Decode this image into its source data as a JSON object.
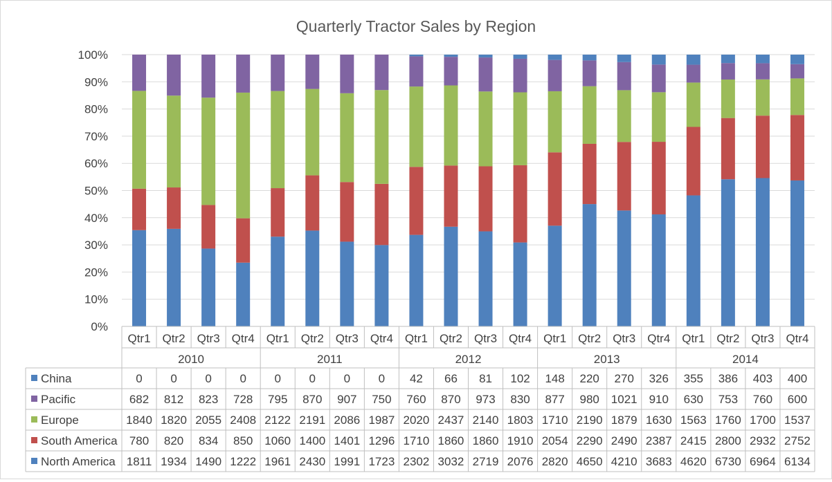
{
  "chart_data": {
    "type": "bar",
    "stacked": "percent",
    "title": "Quarterly Tractor Sales by Region",
    "years": [
      "2010",
      "2011",
      "2012",
      "2013",
      "2014"
    ],
    "quarters": [
      "Qtr1",
      "Qtr2",
      "Qtr3",
      "Qtr4"
    ],
    "y_ticks": [
      "0%",
      "10%",
      "20%",
      "30%",
      "40%",
      "50%",
      "60%",
      "70%",
      "80%",
      "90%",
      "100%"
    ],
    "ylim": [
      0,
      100
    ],
    "grid": true,
    "legend_placement": "data-table",
    "series": [
      {
        "name": "China",
        "color": "#4f81bd",
        "values": [
          0,
          0,
          0,
          0,
          0,
          0,
          0,
          0,
          42,
          66,
          81,
          102,
          148,
          220,
          270,
          326,
          355,
          386,
          403,
          400
        ]
      },
      {
        "name": "Pacific",
        "color": "#8064a2",
        "values": [
          682,
          812,
          823,
          728,
          795,
          870,
          907,
          750,
          760,
          870,
          973,
          830,
          877,
          980,
          1021,
          910,
          630,
          753,
          760,
          600
        ]
      },
      {
        "name": "Europe",
        "color": "#9bbb59",
        "values": [
          1840,
          1820,
          2055,
          2408,
          2122,
          2191,
          2086,
          1987,
          2020,
          2437,
          2140,
          1803,
          1710,
          2190,
          1879,
          1630,
          1563,
          1760,
          1700,
          1537
        ]
      },
      {
        "name": "South America",
        "color": "#c0504d",
        "values": [
          780,
          820,
          834,
          850,
          1060,
          1400,
          1401,
          1296,
          1710,
          1860,
          1860,
          1910,
          2054,
          2290,
          2490,
          2387,
          2415,
          2800,
          2932,
          2752
        ]
      },
      {
        "name": "North America",
        "color": "#4f81bd",
        "values": [
          1811,
          1934,
          1490,
          1222,
          1961,
          2430,
          1991,
          1723,
          2302,
          3032,
          2719,
          2076,
          2820,
          4650,
          4210,
          3683,
          4620,
          6730,
          6964,
          6134
        ]
      }
    ]
  }
}
